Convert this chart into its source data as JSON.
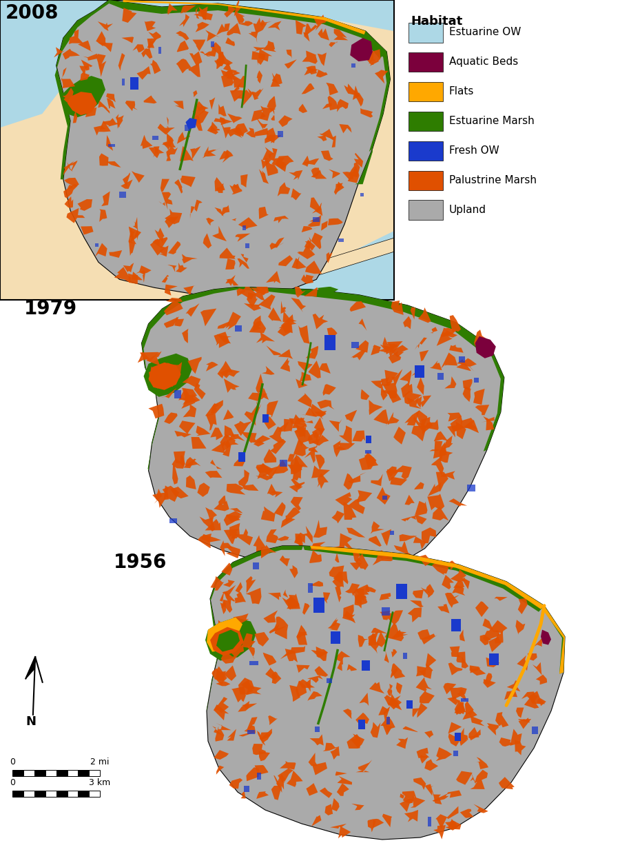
{
  "years": [
    "2008",
    "1979",
    "1956"
  ],
  "habitat_labels": [
    "Estuarine OW",
    "Aquatic Beds",
    "Flats",
    "Estuarine Marsh",
    "Fresh OW",
    "Palustrine Marsh",
    "Upland"
  ],
  "habitat_colors": [
    "#ADD8E6",
    "#7B003C",
    "#FFA800",
    "#2E7D00",
    "#1A3ACC",
    "#E05000",
    "#AAAAAA"
  ],
  "legend_title": "Habitat",
  "background_color": "#FFFFFF",
  "estuary_color": "#ADD8E6",
  "land_bg_color": "#F5DEB3",
  "year_fontsize": 20,
  "legend_fontsize": 11,
  "legend_title_fontsize": 13
}
